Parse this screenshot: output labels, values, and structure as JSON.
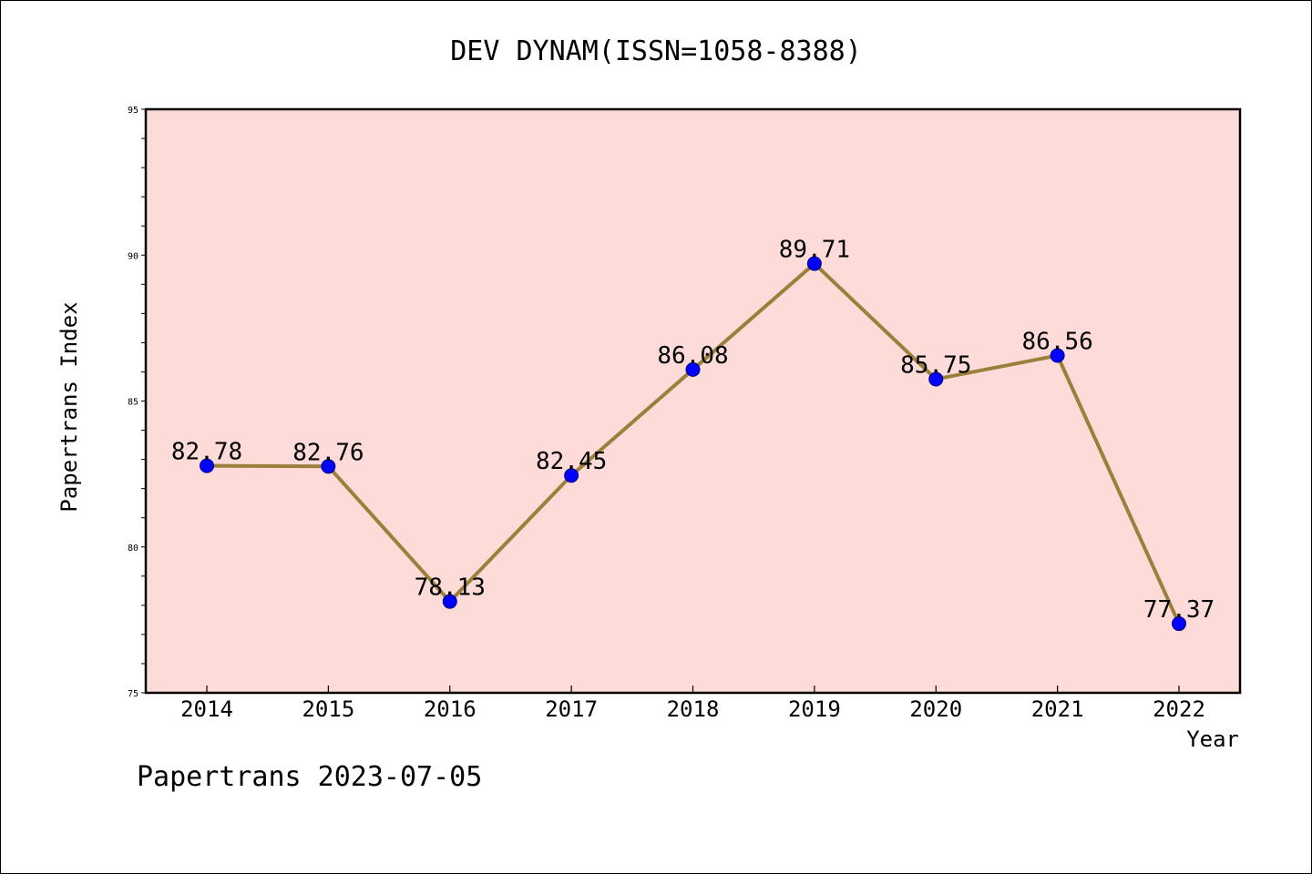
{
  "chart_data": {
    "type": "line",
    "title": "DEV DYNAM(ISSN=1058-8388)",
    "xlabel": "Year",
    "ylabel": "Papertrans Index",
    "categories": [
      "2014",
      "2015",
      "2016",
      "2017",
      "2018",
      "2019",
      "2020",
      "2021",
      "2022"
    ],
    "series": [
      {
        "values": [
          82.78,
          82.76,
          78.13,
          82.45,
          86.08,
          89.71,
          85.75,
          86.56,
          77.37
        ],
        "labels": [
          "82.78",
          "82.76",
          "78.13",
          "82.45",
          "86.08",
          "89.71",
          "85.75",
          "86.56",
          "77.37"
        ]
      }
    ],
    "ylim": [
      75,
      95
    ],
    "yticks": [
      {
        "value": 75,
        "label": "75"
      },
      {
        "value": 80,
        "label": "80"
      },
      {
        "value": 85,
        "label": "85"
      },
      {
        "value": 90,
        "label": "90"
      },
      {
        "value": 95,
        "label": "95"
      }
    ],
    "y_minor_step": 1,
    "grid": false,
    "footer": "Papertrans 2023-07-05",
    "colors": {
      "plot_background": "#fddbd9",
      "line": "#9b7f3a",
      "marker_fill": "#0000ff",
      "marker_edge": "#00007a",
      "axis": "#000000"
    }
  }
}
